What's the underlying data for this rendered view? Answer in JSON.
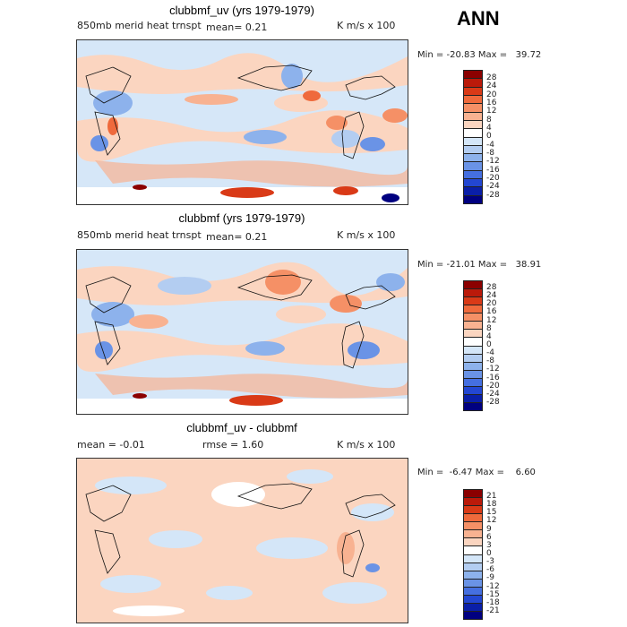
{
  "season": "ANN",
  "panels": [
    {
      "title": "clubbmf_uv (yrs 1979-1979)",
      "left_sub": "850mb merid heat trnspt",
      "mean_text": "mean=    0.21",
      "rmse_text": "",
      "units": "K m/s x 100",
      "minmax": "Min = -20.83 Max =   39.72",
      "levels": [
        "28",
        "24",
        "20",
        "16",
        "12",
        "8",
        "4",
        "0",
        "-4",
        "-8",
        "-12",
        "-16",
        "-20",
        "-24",
        "-28"
      ],
      "colors": [
        "#8b0000",
        "#bb1a0a",
        "#d93a17",
        "#ef6a3c",
        "#f59066",
        "#f8b291",
        "#fbd5c0",
        "#ffffff",
        "#d4e6f8",
        "#b3cdf1",
        "#8db2ec",
        "#6a93e6",
        "#456fe0",
        "#2347d2",
        "#0a1fa8",
        "#000080"
      ]
    },
    {
      "title": "clubbmf (yrs 1979-1979)",
      "left_sub": "850mb merid heat trnspt",
      "mean_text": "mean=    0.21",
      "rmse_text": "",
      "units": "K m/s x 100",
      "minmax": "Min = -21.01 Max =   38.91",
      "levels": [
        "28",
        "24",
        "20",
        "16",
        "12",
        "8",
        "4",
        "0",
        "-4",
        "-8",
        "-12",
        "-16",
        "-20",
        "-24",
        "-28"
      ],
      "colors": [
        "#8b0000",
        "#bb1a0a",
        "#d93a17",
        "#ef6a3c",
        "#f59066",
        "#f8b291",
        "#fbd5c0",
        "#ffffff",
        "#d4e6f8",
        "#b3cdf1",
        "#8db2ec",
        "#6a93e6",
        "#456fe0",
        "#2347d2",
        "#0a1fa8",
        "#000080"
      ]
    },
    {
      "title": "clubbmf_uv - clubbmf",
      "left_sub": "",
      "mean_text": "mean =   -0.01",
      "rmse_text": "rmse =    1.60",
      "units": "K m/s x 100",
      "minmax": "Min =  -6.47 Max =    6.60",
      "levels": [
        "21",
        "18",
        "15",
        "12",
        "9",
        "6",
        "3",
        "0",
        "-3",
        "-6",
        "-9",
        "-12",
        "-15",
        "-18",
        "-21"
      ],
      "colors": [
        "#8b0000",
        "#bb1a0a",
        "#d93a17",
        "#ef6a3c",
        "#f59066",
        "#f8b291",
        "#fbd5c0",
        "#ffffff",
        "#d4e6f8",
        "#b3cdf1",
        "#8db2ec",
        "#6a93e6",
        "#456fe0",
        "#2347d2",
        "#0a1fa8",
        "#000080"
      ]
    }
  ]
}
